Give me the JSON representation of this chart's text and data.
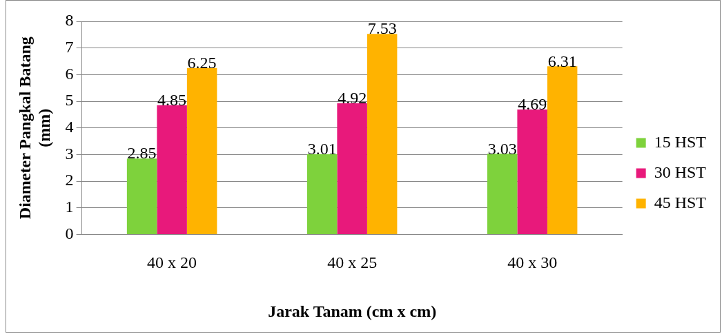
{
  "chart_data": {
    "type": "bar",
    "xlabel": "Jarak Tanam (cm x cm)",
    "ylabel": "Diameter Pangkal Batang (mm)",
    "categories": [
      "40 x 20",
      "40 x 25",
      "40 x 30"
    ],
    "series": [
      {
        "name": "15 HST",
        "color": "#7ed23c",
        "values": [
          2.85,
          3.01,
          3.03
        ]
      },
      {
        "name": "30 HST",
        "color": "#e8197b",
        "values": [
          4.85,
          4.92,
          4.69
        ]
      },
      {
        "name": "45 HST",
        "color": "#ffb300",
        "values": [
          6.25,
          7.53,
          6.31
        ]
      }
    ],
    "ylim": [
      0,
      8
    ],
    "yticks": [
      0,
      1,
      2,
      3,
      4,
      5,
      6,
      7,
      8
    ],
    "grid": "y",
    "legend": "right",
    "data_labels": true
  }
}
